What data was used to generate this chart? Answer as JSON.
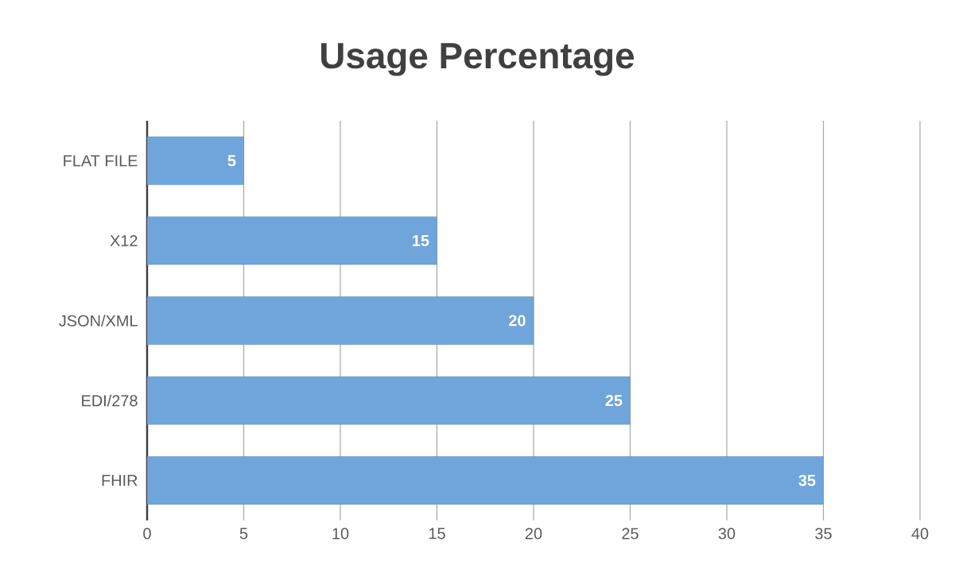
{
  "chart_data": {
    "type": "bar",
    "orientation": "horizontal",
    "title": "Usage Percentage",
    "categories": [
      "FLAT FILE",
      "X12",
      "JSON/XML",
      "EDI/278",
      "FHIR"
    ],
    "values": [
      5,
      15,
      20,
      25,
      35
    ],
    "color": "#6fa5da",
    "xlim": [
      0,
      40
    ],
    "xticks": [
      0,
      5,
      10,
      15,
      20,
      25,
      30,
      35,
      40
    ],
    "grid": "x",
    "data_labels": true
  }
}
